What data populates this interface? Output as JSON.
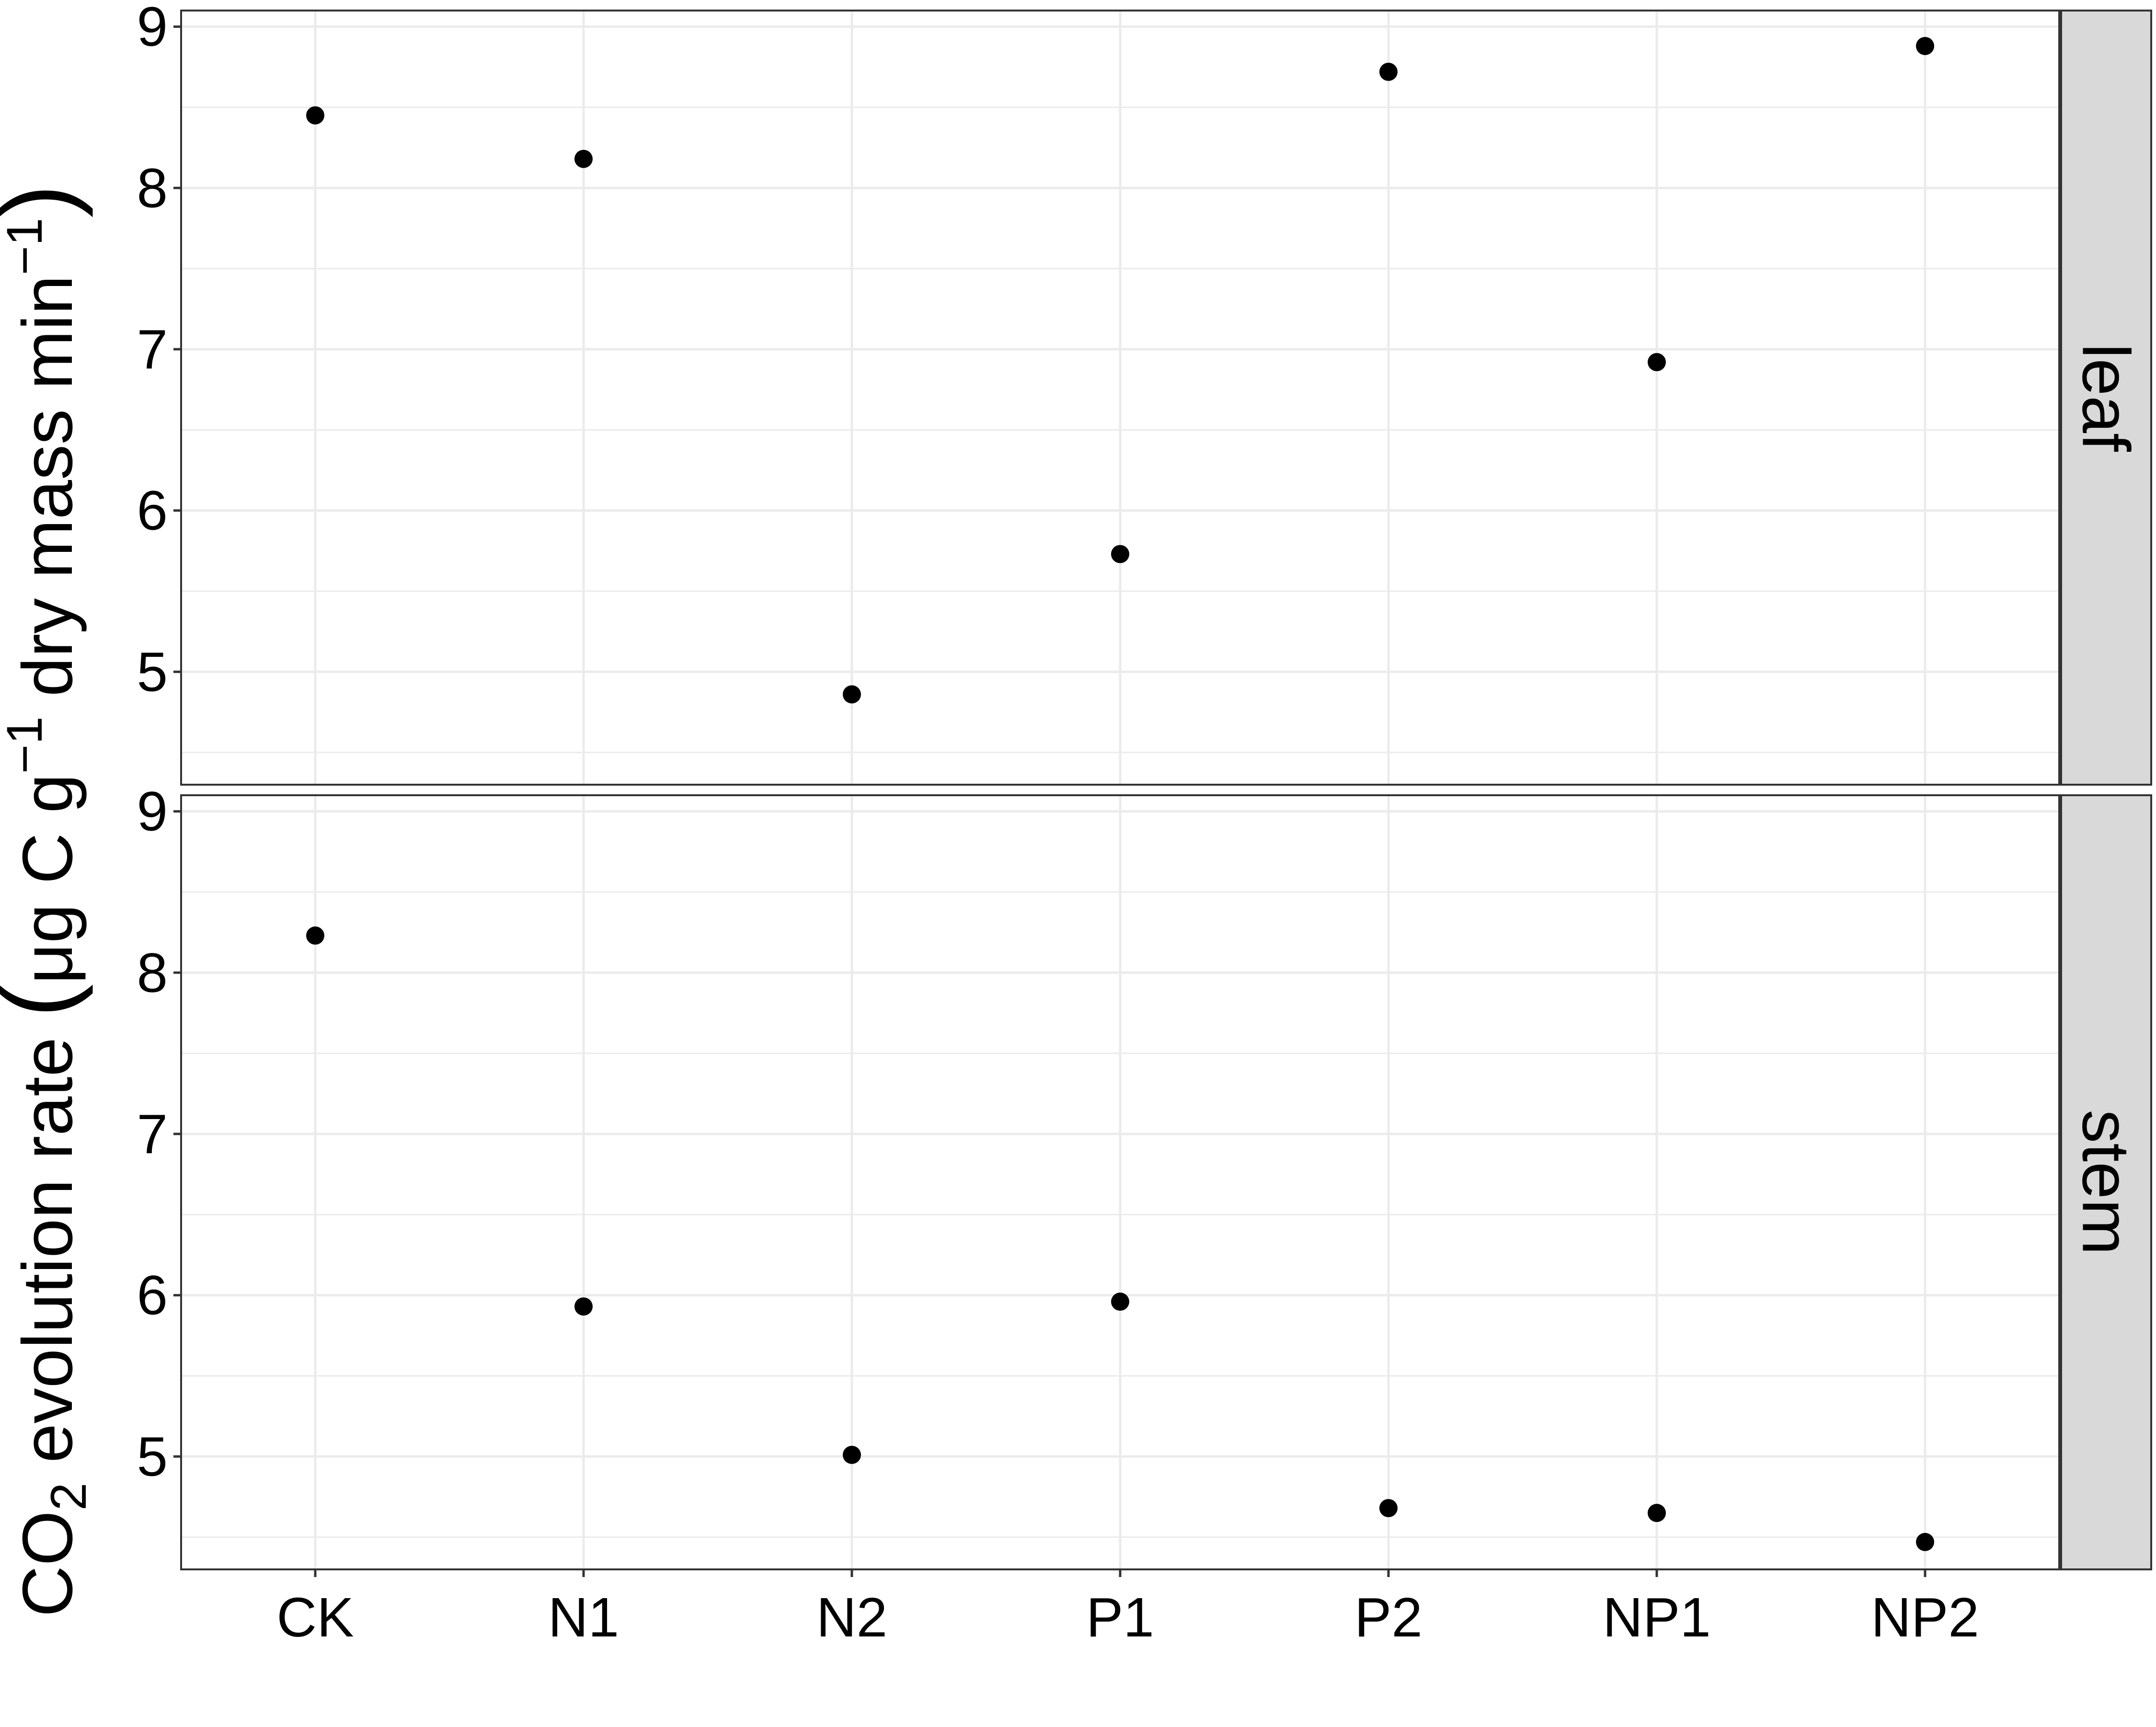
{
  "chart_data": {
    "type": "scatter",
    "categories": [
      "CK",
      "N1",
      "N2",
      "P1",
      "P2",
      "NP1",
      "NP2"
    ],
    "ylabel": {
      "prefix": "CO",
      "prefix_sub": "2",
      "middle": " evolution rate ",
      "paren_open": "(",
      "unit_a": "μg C g",
      "unit_a_sup": "−1",
      "unit_b": " dry mass min",
      "unit_b_sup": "−1",
      "paren_close": ")"
    },
    "y_ticks": [
      5,
      6,
      7,
      8,
      9
    ],
    "y_tick_labels": [
      "5",
      "6",
      "7",
      "8",
      "9"
    ],
    "ylim": [
      4.3,
      9.1
    ],
    "grid": true,
    "facets": [
      {
        "strip": "leaf",
        "values": [
          8.45,
          8.18,
          4.86,
          5.73,
          8.72,
          6.92,
          8.88
        ]
      },
      {
        "strip": "stem",
        "values": [
          8.23,
          5.93,
          5.01,
          5.96,
          4.68,
          4.65,
          4.47
        ]
      }
    ],
    "colors": {
      "point": "#000000",
      "grid": "#ebebeb",
      "strip_fill": "#d9d9d9",
      "border": "#333333"
    }
  }
}
